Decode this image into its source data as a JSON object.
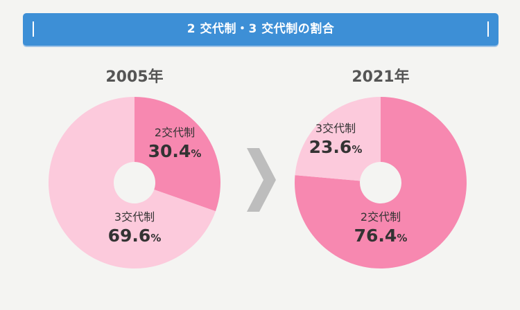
{
  "header": {
    "title": "2 交代制・3 交代制の割合"
  },
  "colors": {
    "banner": "#3d8fd6",
    "two_shift": "#f788b0",
    "three_shift": "#fccadc",
    "arrow": "#bdbdbd"
  },
  "chart_data": [
    {
      "type": "pie",
      "title": "2005年",
      "slices": [
        {
          "label": "2交代制",
          "value": 30.4,
          "unit": "%",
          "color": "#f788b0"
        },
        {
          "label": "3交代制",
          "value": 69.6,
          "unit": "%",
          "color": "#fccadc"
        }
      ]
    },
    {
      "type": "pie",
      "title": "2021年",
      "slices": [
        {
          "label": "2交代制",
          "value": 76.4,
          "unit": "%",
          "color": "#f788b0"
        },
        {
          "label": "3交代制",
          "value": 23.6,
          "unit": "%",
          "color": "#fccadc"
        }
      ]
    }
  ]
}
